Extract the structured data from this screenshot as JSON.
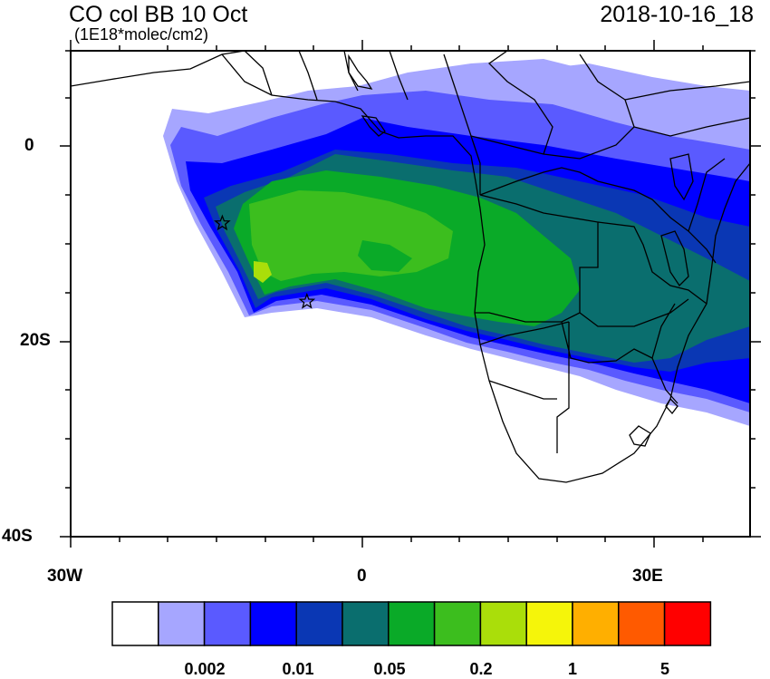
{
  "header": {
    "title": "CO col BB 10 Oct",
    "units": "(1E18*molec/cm2)",
    "datetime": "2018-10-16_18"
  },
  "axes": {
    "y_ticks": [
      "0",
      "20S",
      "40S"
    ],
    "x_ticks": [
      "30W",
      "0",
      "30E"
    ]
  },
  "map": {
    "markers": [
      {
        "name": "star",
        "lon": -14.4,
        "lat": -7.9
      },
      {
        "name": "star",
        "lon": -5.7,
        "lat": -15.9
      }
    ]
  },
  "colorbar": {
    "colors": [
      "#ffffff",
      "#a6a6ff",
      "#5a5aff",
      "#0000ff",
      "#0a37b4",
      "#0a6e6e",
      "#0aaa28",
      "#3cbe1e",
      "#aade0a",
      "#f5f50a",
      "#ffaf00",
      "#ff5a00",
      "#ff0000"
    ],
    "labels": [
      "0.002",
      "0.01",
      "0.05",
      "0.2",
      "1",
      "5"
    ]
  }
}
